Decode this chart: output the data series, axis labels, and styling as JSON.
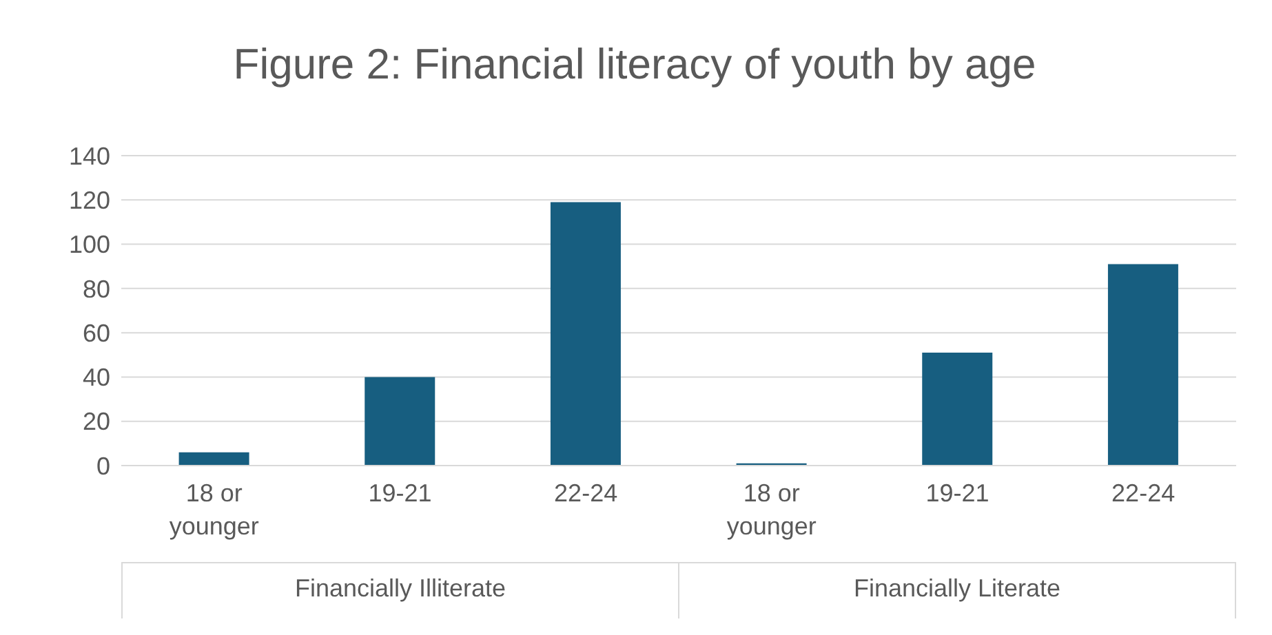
{
  "chart_data": {
    "type": "bar",
    "title": "Figure 2: Financial literacy of youth by age",
    "categories": [
      "18 or younger",
      "19-21",
      "22-24",
      "18 or younger",
      "19-21",
      "22-24"
    ],
    "values": [
      6,
      40,
      119,
      1,
      51,
      91
    ],
    "color": "#175e80",
    "ylim": [
      0,
      140
    ],
    "yticks": [
      0,
      20,
      40,
      60,
      80,
      100,
      120,
      140
    ],
    "grid": "y",
    "annotations": [
      "Financially Illiterate",
      "Financially Literate"
    ]
  }
}
